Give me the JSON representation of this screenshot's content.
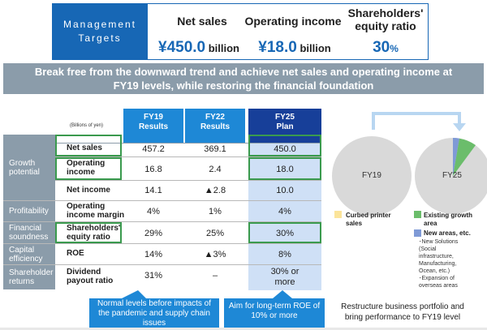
{
  "targets": {
    "label": "Management\nTargets",
    "columns": [
      {
        "heading": "Net sales",
        "value": "450.0",
        "prefix": "¥",
        "unit": " billion"
      },
      {
        "heading": "Operating income",
        "value": "18.0",
        "prefix": "¥",
        "unit": " billion"
      },
      {
        "heading": "Shareholders'\nequity ratio",
        "value": "30",
        "prefix": "",
        "unit": "%"
      }
    ]
  },
  "banner": "Break free from the downward trend and achieve net sales and operating income at FY19 levels, while restoring the financial foundation",
  "table": {
    "unit_note": "(Billions of yen)",
    "headers": [
      {
        "line1": "FY19",
        "line2": "Results"
      },
      {
        "line1": "FY22",
        "line2": "Results"
      },
      {
        "line1": "FY25",
        "line2": "Plan"
      }
    ],
    "categories": [
      "Growth\npotential",
      "Profitability",
      "Financial\nsoundness",
      "Capital\nefficiency",
      "Shareholder\nreturns"
    ],
    "rows": [
      {
        "item": "Net sales",
        "fy19": "457.2",
        "fy22": "369.1",
        "fy25": "450.0"
      },
      {
        "item": "Operating\nincome",
        "fy19": "16.8",
        "fy22": "2.4",
        "fy25": "18.0"
      },
      {
        "item": "Net income",
        "fy19": "14.1",
        "fy22": "▲2.8",
        "fy25": "10.0"
      },
      {
        "item": "Operating\nincome margin",
        "fy19": "4%",
        "fy22": "1%",
        "fy25": "4%"
      },
      {
        "item": "Shareholders'\nequity ratio",
        "fy19": "29%",
        "fy22": "25%",
        "fy25": "30%"
      },
      {
        "item": "ROE",
        "fy19": "14%",
        "fy22": "▲3%",
        "fy25": "8%"
      },
      {
        "item": "Dividend\npayout ratio",
        "fy19": "31%",
        "fy22": "–",
        "fy25": "30% or\nmore"
      }
    ]
  },
  "callouts": {
    "left": "Normal levels before impacts of the pandemic and supply chain issues",
    "right": "Aim for long-term ROE of 10% or more"
  },
  "pies": {
    "labels": [
      "FY19",
      "FY25"
    ],
    "legend": {
      "curbed": "Curbed printer\nsales",
      "existing": "Existing growth area",
      "new": "New areas, etc.",
      "new_details": "･New Solutions\n(Social\ninfrastructure,\nManufacturing,\nOcean, etc.)\n･Expansion of\noverseas areas"
    },
    "caption": "Restructure business portfolio and\nbring performance to FY19 level",
    "colors": {
      "grey": "#d9d9d9",
      "yellow": "#fbe49a",
      "green": "#6bbd6b",
      "blue": "#7f9ad6",
      "arrow": "#b8d6f1"
    }
  }
}
